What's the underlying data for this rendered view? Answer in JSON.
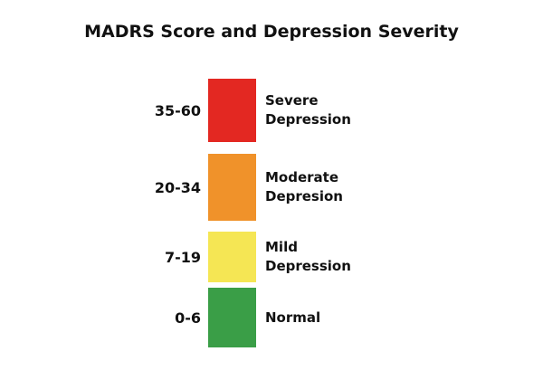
{
  "title": "MADRS Score and Depression Severity",
  "levels": [
    {
      "range": "35-60",
      "label": "Severe Depression",
      "color": "#e32822"
    },
    {
      "range": "20-34",
      "label": "Moderate Depresion",
      "color": "#f0922a"
    },
    {
      "range": "7-19",
      "label": "Mild Depression",
      "color": "#f5e654"
    },
    {
      "range": "0-6",
      "label": "Normal",
      "color": "#3a9e47"
    }
  ]
}
